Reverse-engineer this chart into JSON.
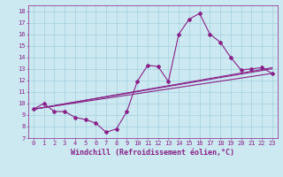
{
  "xlabel": "Windchill (Refroidissement éolien,°C)",
  "bg_color": "#cce8f0",
  "line_color": "#882288",
  "grid_color": "#99ccdd",
  "xlim": [
    -0.5,
    23.5
  ],
  "ylim": [
    7,
    18.5
  ],
  "xticks": [
    0,
    1,
    2,
    3,
    4,
    5,
    6,
    7,
    8,
    9,
    10,
    11,
    12,
    13,
    14,
    15,
    16,
    17,
    18,
    19,
    20,
    21,
    22,
    23
  ],
  "yticks": [
    7,
    8,
    9,
    10,
    11,
    12,
    13,
    14,
    15,
    16,
    17,
    18
  ],
  "curve1_x": [
    0,
    1,
    2,
    3,
    4,
    5,
    6,
    7,
    8,
    9,
    10,
    11,
    12,
    13,
    14,
    15,
    16,
    17,
    18,
    19,
    20,
    21,
    22,
    23
  ],
  "curve1_y": [
    9.5,
    10.0,
    9.3,
    9.3,
    8.8,
    8.6,
    8.3,
    7.5,
    7.8,
    9.3,
    11.9,
    13.3,
    13.2,
    11.9,
    16.0,
    17.3,
    17.8,
    16.0,
    15.3,
    14.0,
    12.9,
    13.0,
    13.1,
    12.6
  ],
  "line2_x": [
    0,
    23
  ],
  "line2_y": [
    9.5,
    12.6
  ],
  "line3_x": [
    0,
    23
  ],
  "line3_y": [
    9.5,
    13.1
  ],
  "line4_x": [
    0,
    23
  ],
  "line4_y": [
    9.5,
    13.0
  ],
  "marker": "D",
  "markersize": 2.0,
  "linewidth": 0.8,
  "tick_fontsize": 5.0,
  "xlabel_fontsize": 6.0
}
